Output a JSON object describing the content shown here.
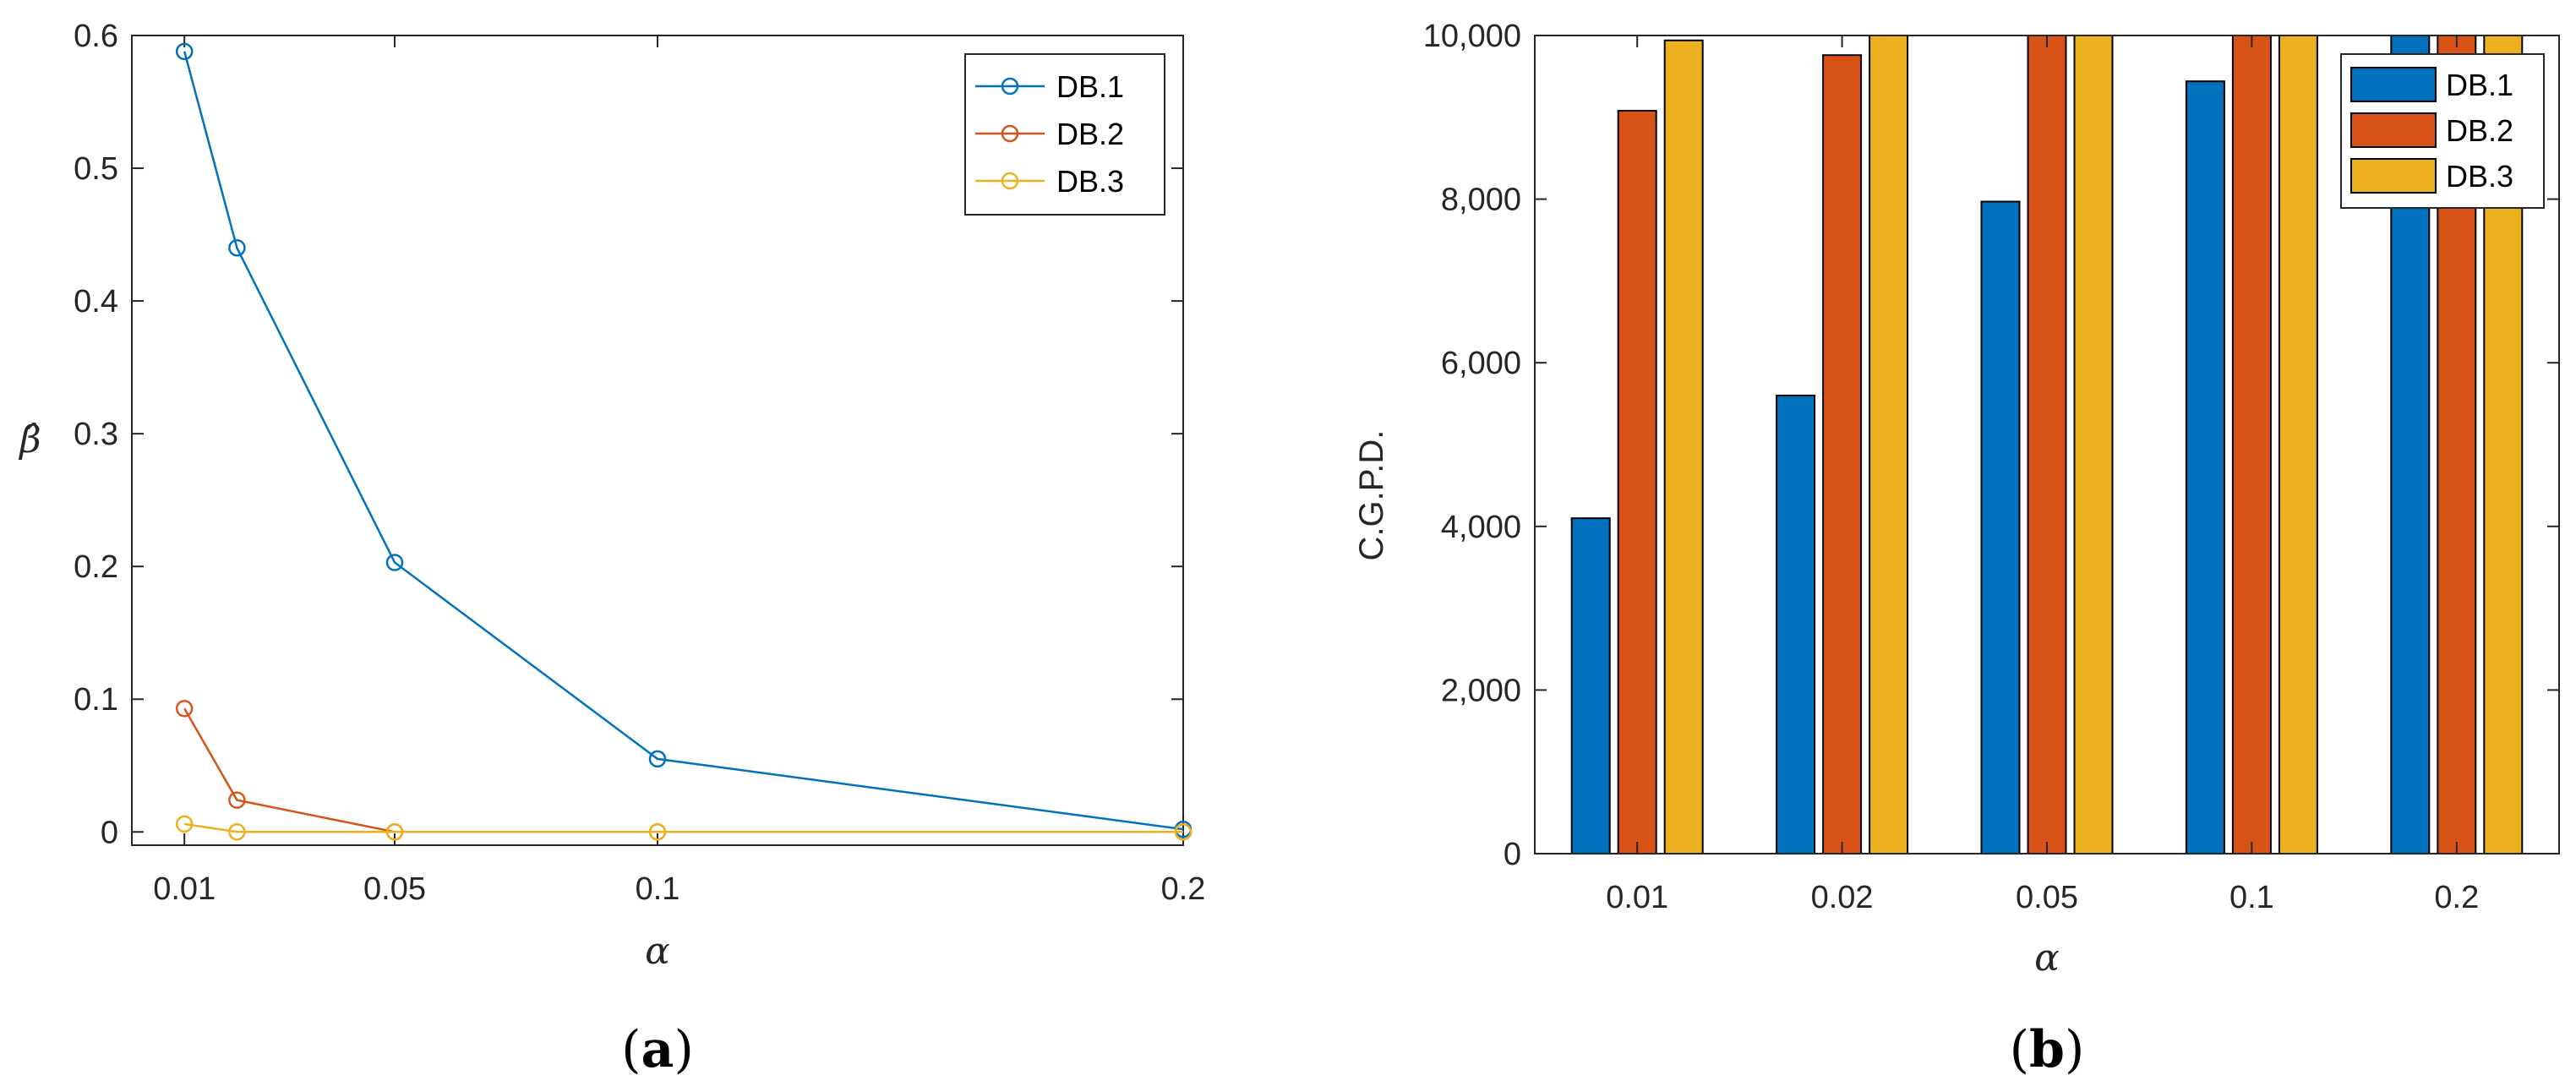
{
  "chart_data": [
    {
      "type": "line",
      "panel_label": {
        "open": "(",
        "letter": "a",
        "close": ")"
      },
      "xlabel": "α",
      "ylabel": "β̂",
      "x": [
        0.01,
        0.02,
        0.05,
        0.1,
        0.2
      ],
      "xlim": [
        0.0,
        0.2
      ],
      "xticks": [
        0.01,
        0.05,
        0.1,
        0.2
      ],
      "xtick_labels": [
        "0.01",
        "0.05",
        "0.1",
        "0.2"
      ],
      "ylim": [
        -0.01,
        0.6
      ],
      "yticks": [
        0,
        0.1,
        0.2,
        0.3,
        0.4,
        0.5,
        0.6
      ],
      "ytick_labels": [
        "0",
        "0.1",
        "0.2",
        "0.3",
        "0.4",
        "0.5",
        "0.6"
      ],
      "grid": false,
      "legend": "top-right",
      "marker": "circle",
      "series": [
        {
          "name": "DB.1",
          "color": "#0072BD",
          "values": [
            0.588,
            0.44,
            0.203,
            0.055,
            0.002
          ]
        },
        {
          "name": "DB.2",
          "color": "#D95319",
          "values": [
            0.093,
            0.024,
            0.0,
            0.0,
            0.0
          ]
        },
        {
          "name": "DB.3",
          "color": "#EDB120",
          "values": [
            0.006,
            0.0,
            0.0,
            0.0,
            0.0
          ]
        }
      ]
    },
    {
      "type": "bar",
      "panel_label": {
        "open": "(",
        "letter": "b",
        "close": ")"
      },
      "xlabel": "α",
      "ylabel": "C.G.P.D.",
      "categories": [
        "0.01",
        "0.02",
        "0.05",
        "0.1",
        "0.2"
      ],
      "ylim": [
        0,
        10000
      ],
      "yticks": [
        0,
        2000,
        4000,
        6000,
        8000,
        10000
      ],
      "ytick_labels": [
        "0",
        "2,000",
        "4,000",
        "6,000",
        "8,000",
        "10,000"
      ],
      "grid": false,
      "legend": "top-right",
      "series": [
        {
          "name": "DB.1",
          "color": "#0072BD",
          "values": [
            4100,
            5600,
            7970,
            9440,
            10000
          ]
        },
        {
          "name": "DB.2",
          "color": "#D95319",
          "values": [
            9080,
            9760,
            10000,
            10000,
            10000
          ]
        },
        {
          "name": "DB.3",
          "color": "#EDB120",
          "values": [
            9940,
            10000,
            10000,
            10000,
            10000
          ]
        }
      ]
    }
  ]
}
